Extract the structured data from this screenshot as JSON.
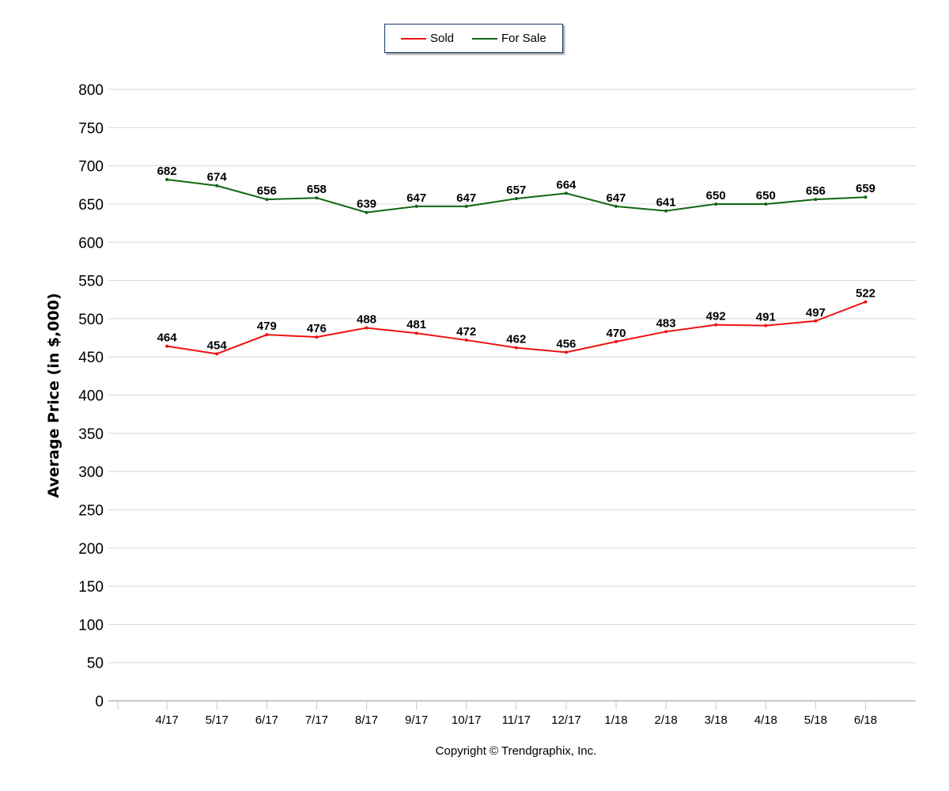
{
  "chart_data": {
    "type": "line",
    "title": "",
    "xlabel": "",
    "ylabel": "Average Price (in $,000)",
    "categories": [
      "4/17",
      "5/17",
      "6/17",
      "7/17",
      "8/17",
      "9/17",
      "10/17",
      "11/17",
      "12/17",
      "1/18",
      "2/18",
      "3/18",
      "4/18",
      "5/18",
      "6/18"
    ],
    "series": [
      {
        "name": "Sold",
        "color": "#ee1111",
        "values": [
          464,
          454,
          479,
          476,
          488,
          481,
          472,
          462,
          456,
          470,
          483,
          492,
          491,
          497,
          522
        ]
      },
      {
        "name": "For Sale",
        "color": "#116611",
        "values": [
          682,
          674,
          656,
          658,
          639,
          647,
          647,
          657,
          664,
          647,
          641,
          650,
          650,
          656,
          659
        ]
      }
    ],
    "ylim": [
      0,
      800
    ],
    "yticks": [
      0,
      50,
      100,
      150,
      200,
      250,
      300,
      350,
      400,
      450,
      500,
      550,
      600,
      650,
      700,
      750,
      800
    ],
    "grid": true,
    "legend": "top-center",
    "data_labels": true
  },
  "footer": {
    "copyright": "Copyright © Trendgraphix, Inc."
  }
}
